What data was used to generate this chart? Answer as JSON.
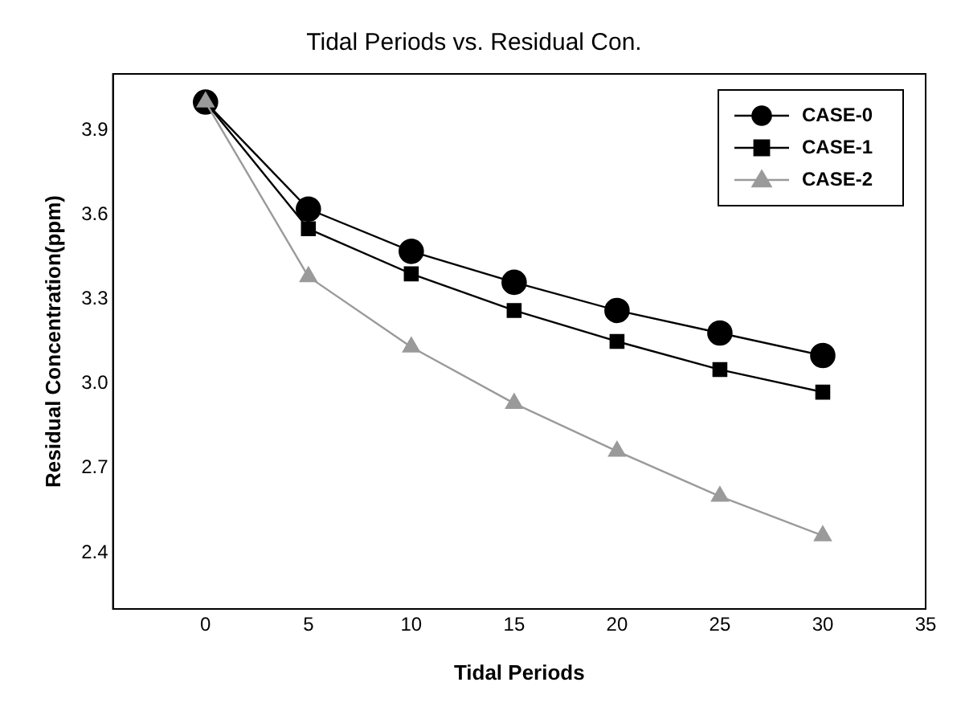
{
  "chart_data": {
    "type": "line",
    "title": "Tidal Periods vs. Residual Con.",
    "xlabel": "Tidal Periods",
    "ylabel": "Residual Concentration(ppm)",
    "x": [
      0,
      5,
      10,
      15,
      20,
      25,
      30
    ],
    "series": [
      {
        "name": "CASE-0",
        "color": "#000000",
        "marker": "circle",
        "values": [
          4.0,
          3.62,
          3.47,
          3.36,
          3.26,
          3.18,
          3.1
        ]
      },
      {
        "name": "CASE-1",
        "color": "#000000",
        "marker": "square",
        "values": [
          4.0,
          3.55,
          3.39,
          3.26,
          3.15,
          3.05,
          2.97
        ]
      },
      {
        "name": "CASE-2",
        "color": "#9a9a9a",
        "marker": "triangle",
        "values": [
          4.0,
          3.38,
          3.13,
          2.93,
          2.76,
          2.6,
          2.46
        ]
      }
    ],
    "xlim": [
      -4.5,
      35
    ],
    "xticks": [
      0,
      5,
      10,
      15,
      20,
      25,
      30,
      35
    ],
    "ylim": [
      2.2,
      4.1
    ],
    "yticks": [
      2.4,
      2.7,
      {
        "value": 3,
        "label": "3.0"
      },
      3.3,
      3.6,
      3.9
    ],
    "grid": false,
    "legend": "top right",
    "line_style": "solid"
  }
}
